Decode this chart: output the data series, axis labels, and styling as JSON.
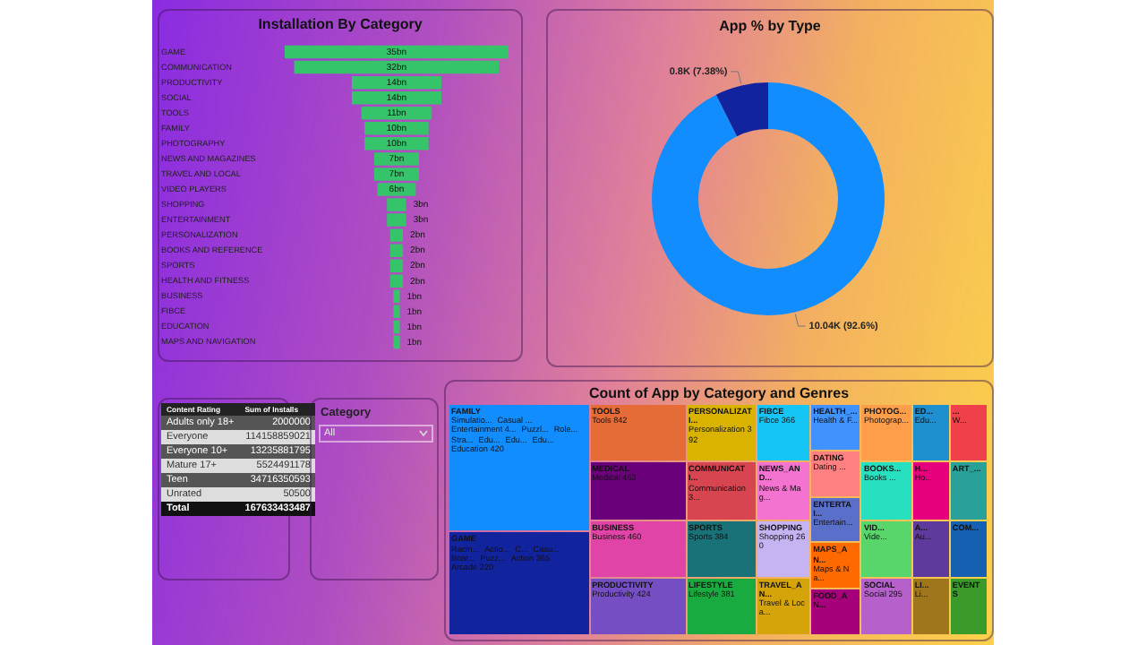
{
  "chart_data": [
    {
      "type": "other",
      "title": "Installation By Category",
      "categories": [
        "GAME",
        "COMMUNICATION",
        "PRODUCTIVITY",
        "SOCIAL",
        "TOOLS",
        "FAMILY",
        "PHOTOGRAPHY",
        "NEWS AND MAGAZINES",
        "TRAVEL AND LOCAL",
        "VIDEO PLAYERS",
        "SHOPPING",
        "ENTERTAINMENT",
        "PERSONALIZATION",
        "BOOKS AND REFERENCE",
        "SPORTS",
        "HEALTH AND FITNESS",
        "BUSINESS",
        "FIBCE",
        "EDUCATION",
        "MAPS AND NAVIGATION"
      ],
      "values": [
        35,
        32,
        14,
        14,
        11,
        10,
        10,
        7,
        7,
        6,
        3,
        3,
        2,
        2,
        2,
        2,
        1,
        1,
        1,
        1
      ],
      "value_labels": [
        "35bn",
        "32bn",
        "14bn",
        "14bn",
        "11bn",
        "10bn",
        "10bn",
        "7bn",
        "7bn",
        "6bn",
        "3bn",
        "3bn",
        "2bn",
        "2bn",
        "2bn",
        "2bn",
        "1bn",
        "1bn",
        "1bn",
        "1bn"
      ],
      "color": "#35c46a"
    },
    {
      "type": "donut",
      "title": "App % by Type",
      "categories": [
        null,
        null
      ],
      "values": [
        10040,
        800
      ],
      "colors": [
        "#118dff",
        "#12239e"
      ],
      "value_labels": [
        "10.04K (92.6%)",
        "0.8K (7.38%)"
      ]
    },
    {
      "type": "other",
      "xlabel": "Content Rating",
      "ylabel": "Sum of Installs",
      "categories": [
        "Adults only 18+",
        "Everyone",
        "Everyone 10+",
        "Mature 17+",
        "Teen",
        "Unrated",
        "Total"
      ],
      "values": [
        2000000,
        114158859021,
        13235881795,
        5524491178,
        34716350593,
        50500,
        167633433487
      ],
      "data_labels": true
    },
    {
      "type": "other",
      "title": "Category",
      "annotations": [
        "All"
      ]
    },
    {
      "type": "other",
      "title": "Count of App by Category and Genres",
      "categories": [
        "FAMILY",
        "GAME",
        "TOOLS",
        "MEDICAL",
        "BUSINESS",
        "PRODUCTIVITY",
        "PERSONALIZATI...",
        "COMMUNICATI...",
        "SPORTS",
        "LIFESTYLE",
        "FIBCE",
        "NEWS_AND...",
        "SHOPPING",
        "TRAVEL_AN...",
        "HEALTH_...",
        "DATING",
        "ENTERTAI...",
        "MAPS_AN...",
        "FOOD_AN...",
        "PHOTOG...",
        "BOOKS...",
        "VID...",
        "SOCIAL",
        "ED...",
        "H...",
        "A...",
        "LI...",
        "...",
        "ART_...",
        "COM...",
        "EVENTS"
      ],
      "colors": [
        "#118dff",
        "#12239e",
        "#e66c37",
        "#6b007b",
        "#e044a7",
        "#744ec2",
        "#d9b300",
        "#d64550",
        "#197278",
        "#1aab40",
        "#15c6f4",
        "#f472d0",
        "#c5b4f1",
        "#d4a40a",
        "#4092ff",
        "#ff8080",
        "#5a6fc9",
        "#ff6a00",
        "#a6007b",
        "#ff9e4a",
        "#27e0c0",
        "#58d66b",
        "#b660cc",
        "#1e90d0",
        "#e6007e",
        "#5d3a9b",
        "#a0761d",
        "#f0404a",
        "#2aa198",
        "#1560b0",
        "#3a9a2a"
      ],
      "annotations": [
        {
          "text": "Simulatio...",
          "x": "FAMILY"
        },
        {
          "text": "Casual ...",
          "x": "FAMILY"
        },
        {
          "text": "Entertainment 4...",
          "x": "FAMILY"
        },
        {
          "text": "Puzzl...",
          "x": "FAMILY"
        },
        {
          "text": "Role...",
          "x": "FAMILY"
        },
        {
          "text": "Stra...",
          "x": "FAMILY"
        },
        {
          "text": "Edu...",
          "x": "FAMILY"
        },
        {
          "text": "Edu...",
          "x": "FAMILY"
        },
        {
          "text": "Edu...",
          "x": "FAMILY"
        },
        {
          "text": "Education 420",
          "x": "FAMILY"
        },
        {
          "text": "Racin...",
          "x": "GAME"
        },
        {
          "text": "Actio...",
          "x": "GAME"
        },
        {
          "text": "C...",
          "x": "GAME"
        },
        {
          "text": "Casu...",
          "x": "GAME"
        },
        {
          "text": "Boar...",
          "x": "GAME"
        },
        {
          "text": "Puzz...",
          "x": "GAME"
        },
        {
          "text": "Action 365",
          "x": "GAME"
        },
        {
          "text": "Arcade 220",
          "x": "GAME"
        },
        {
          "text": "Tools 842",
          "x": "TOOLS"
        },
        {
          "text": "Medical 463",
          "x": "MEDICAL"
        },
        {
          "text": "Business 460",
          "x": "BUSINESS"
        },
        {
          "text": "Productivity 424",
          "x": "PRODUCTIVITY"
        },
        {
          "text": "Personalization 392",
          "x": "PERSONALIZATI..."
        },
        {
          "text": "Communication 3...",
          "x": "COMMUNICATI..."
        },
        {
          "text": "Sports 384",
          "x": "SPORTS"
        },
        {
          "text": "Lifestyle 381",
          "x": "LIFESTYLE"
        },
        {
          "text": "Fibce 366",
          "x": "FIBCE"
        },
        {
          "text": "News & Mag...",
          "x": "NEWS_AND..."
        },
        {
          "text": "Shopping 260",
          "x": "SHOPPING"
        },
        {
          "text": "Travel & Loca...",
          "x": "TRAVEL_AN..."
        },
        {
          "text": "Health & F...",
          "x": "HEALTH_..."
        },
        {
          "text": "Dating ...",
          "x": "DATING"
        },
        {
          "text": "Entertain...",
          "x": "ENTERTAI..."
        },
        {
          "text": "Maps & Na...",
          "x": "MAPS_AN..."
        },
        {
          "text": "Photograp...",
          "x": "PHOTOG..."
        },
        {
          "text": "Books ...",
          "x": "BOOKS..."
        },
        {
          "text": "Vide...",
          "x": "VID..."
        },
        {
          "text": "Social 295",
          "x": "SOCIAL"
        },
        {
          "text": "Edu...",
          "x": "ED..."
        },
        {
          "text": "Ho...",
          "x": "H..."
        },
        {
          "text": "Au...",
          "x": "A..."
        },
        {
          "text": "Li...",
          "x": "LI..."
        },
        {
          "text": "W...",
          "x": "..."
        }
      ]
    }
  ]
}
